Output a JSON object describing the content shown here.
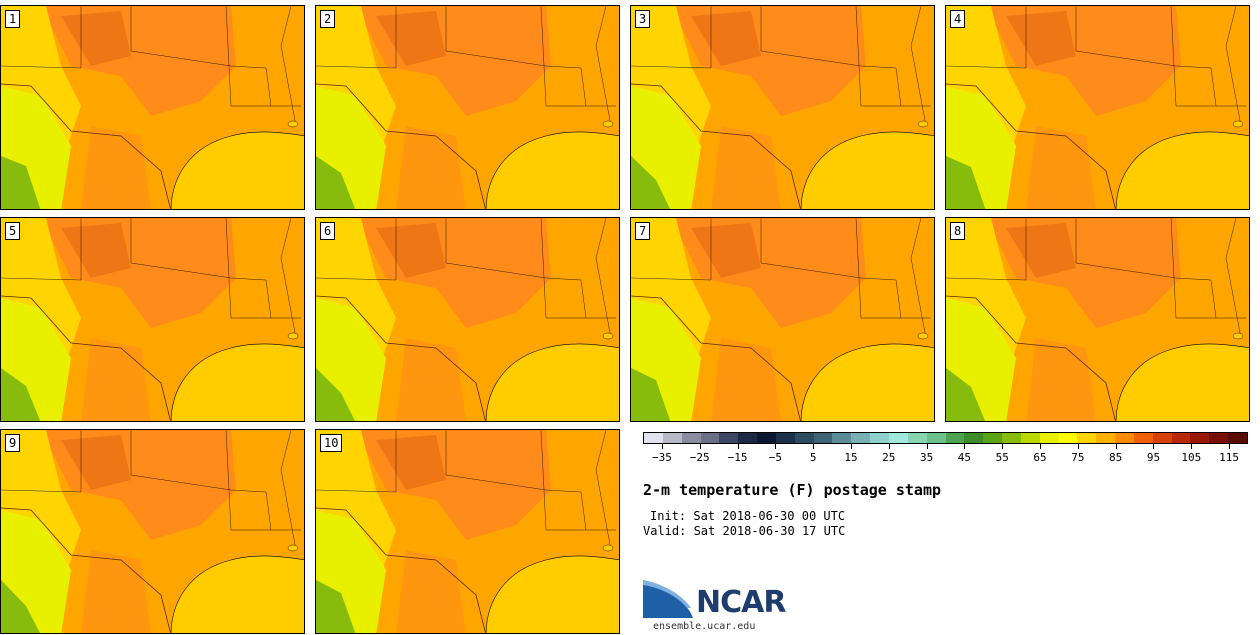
{
  "panels": [
    {
      "label": "1"
    },
    {
      "label": "2"
    },
    {
      "label": "3"
    },
    {
      "label": "4"
    },
    {
      "label": "5"
    },
    {
      "label": "6"
    },
    {
      "label": "7"
    },
    {
      "label": "8"
    },
    {
      "label": "9"
    },
    {
      "label": "10"
    }
  ],
  "colorbar": {
    "colors": [
      "#e2e2ec",
      "#b8b8c6",
      "#8c8ca0",
      "#6a7088",
      "#3c4660",
      "#1c2844",
      "#0c1830",
      "#1c3048",
      "#2c4c60",
      "#3c6474",
      "#5c8c98",
      "#78b0b4",
      "#90d0cc",
      "#a0e8dc",
      "#88d4b0",
      "#6cc08c",
      "#4ca450",
      "#3c8c28",
      "#5aa414",
      "#88bc0c",
      "#b8d800",
      "#e8f000",
      "#ffff00",
      "#ffd400",
      "#ffb000",
      "#ff8c00",
      "#f06000",
      "#d84000",
      "#b82800",
      "#981800",
      "#781000",
      "#5a0c00"
    ],
    "ticks": [
      "−35",
      "−25",
      "−15",
      "−5",
      "5",
      "15",
      "25",
      "35",
      "45",
      "55",
      "65",
      "75",
      "85",
      "95",
      "105",
      "115"
    ],
    "tick_values": [
      -35,
      -25,
      -15,
      -5,
      5,
      15,
      25,
      35,
      45,
      55,
      65,
      75,
      85,
      95,
      105,
      115
    ],
    "range": [
      -40,
      120
    ]
  },
  "title": "2-m temperature (F) postage stamp",
  "init": "Init: Sat 2018-06-30 00 UTC",
  "valid": "Valid: Sat 2018-06-30 17 UTC",
  "logo": "NCAR",
  "site": "ensemble.ucar.edu",
  "map_colors": {
    "gulf": "#ffcc00",
    "hot": "#ff8c1a",
    "warm": "#ffa500",
    "mild": "#ffd400",
    "cool": "#e8f000",
    "green": "#88bc0c",
    "dark": "#e06010"
  }
}
